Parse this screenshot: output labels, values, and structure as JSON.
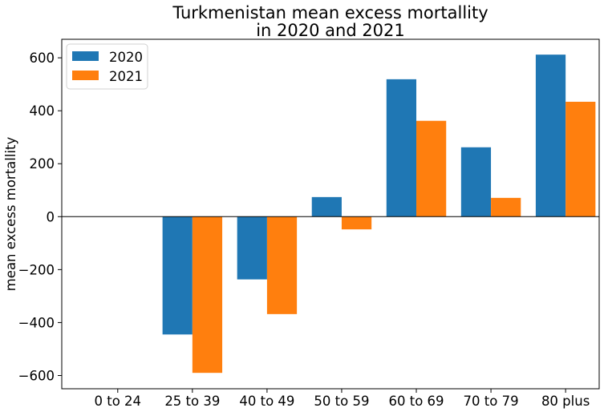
{
  "chart_data": {
    "type": "bar",
    "title_line1": "Turkmenistan mean excess mortallity",
    "title_line2": "in 2020 and 2021",
    "xlabel": "",
    "ylabel": "mean excess mortallity",
    "categories": [
      "0 to 24",
      "25 to 39",
      "40 to 49",
      "50 to 59",
      "60 to 69",
      "70 to 79",
      "80 plus"
    ],
    "series": [
      {
        "name": "2020",
        "color": "#1f77b4",
        "values": [
          0,
          -445,
          -237,
          74,
          519,
          262,
          612
        ]
      },
      {
        "name": "2021",
        "color": "#ff7f0e",
        "values": [
          0,
          -590,
          -368,
          -48,
          362,
          71,
          434
        ]
      }
    ],
    "ylim": [
      -650,
      670
    ],
    "yticks": [
      -600,
      -400,
      -200,
      0,
      200,
      400,
      600
    ],
    "ytick_labels": [
      "−600",
      "−400",
      "−200",
      "0",
      "200",
      "400",
      "600"
    ],
    "zero_line": true,
    "grid": false,
    "legend_position": "upper-left"
  }
}
